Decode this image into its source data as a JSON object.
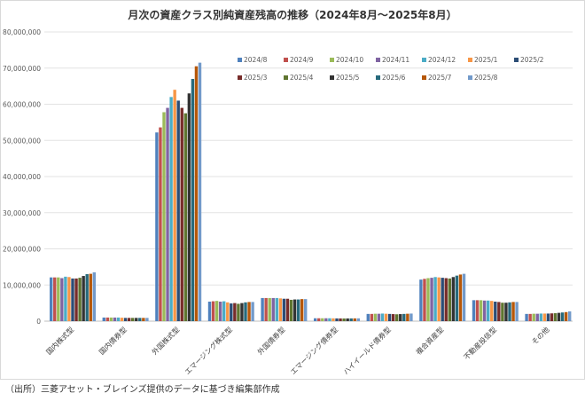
{
  "chart_data": {
    "type": "bar",
    "title": "月次の資産クラス別純資産残高の推移（2024年8月〜2025年8月）",
    "xlabel": "",
    "ylabel": "",
    "ylim": [
      0,
      80000000
    ],
    "yticks": [
      "0",
      "10,000,000",
      "20,000,000",
      "30,000,000",
      "40,000,000",
      "50,000,000",
      "60,000,000",
      "70,000,000",
      "80,000,000"
    ],
    "grid": true,
    "legend_position": "top-right",
    "categories": [
      "国内株式型",
      "国内債券型",
      "外国株式型",
      "エマージング株式型",
      "外国債券型",
      "エマージング債券型",
      "ハイイールド債券型",
      "複合資産型",
      "不動産投信型",
      "その他"
    ],
    "series": [
      {
        "name": "2024/8",
        "color": "#4f81bd",
        "values": [
          12100000,
          1000000,
          52200000,
          5400000,
          6400000,
          800000,
          2000000,
          11500000,
          5800000,
          2000000
        ]
      },
      {
        "name": "2024/9",
        "color": "#c0504d",
        "values": [
          12100000,
          1000000,
          53600000,
          5500000,
          6400000,
          800000,
          2000000,
          11700000,
          5800000,
          2000000
        ]
      },
      {
        "name": "2024/10",
        "color": "#9bbb59",
        "values": [
          12100000,
          1000000,
          57800000,
          5600000,
          6400000,
          800000,
          2050000,
          11900000,
          5800000,
          2050000
        ]
      },
      {
        "name": "2024/11",
        "color": "#8064a2",
        "values": [
          11900000,
          1000000,
          59000000,
          5400000,
          6400000,
          800000,
          2050000,
          12000000,
          5700000,
          2050000
        ]
      },
      {
        "name": "2024/12",
        "color": "#4bacc6",
        "values": [
          12300000,
          1000000,
          62000000,
          5500000,
          6400000,
          800000,
          2100000,
          12200000,
          5700000,
          2100000
        ]
      },
      {
        "name": "2025/1",
        "color": "#f79646",
        "values": [
          12200000,
          950000,
          64000000,
          5200000,
          6300000,
          780000,
          2050000,
          12100000,
          5600000,
          2100000
        ]
      },
      {
        "name": "2025/2",
        "color": "#2c4d75",
        "values": [
          11800000,
          900000,
          61000000,
          4900000,
          6200000,
          760000,
          2000000,
          12000000,
          5400000,
          2100000
        ]
      },
      {
        "name": "2025/3",
        "color": "#772c2a",
        "values": [
          11800000,
          900000,
          59000000,
          5000000,
          6200000,
          750000,
          1950000,
          11900000,
          5300000,
          2150000
        ]
      },
      {
        "name": "2025/4",
        "color": "#5f7530",
        "values": [
          12000000,
          900000,
          57500000,
          4800000,
          5900000,
          740000,
          1900000,
          11800000,
          5100000,
          2200000
        ]
      },
      {
        "name": "2025/5",
        "color": "#333333",
        "values": [
          12500000,
          900000,
          63000000,
          5000000,
          6000000,
          750000,
          1950000,
          12200000,
          5100000,
          2300000
        ]
      },
      {
        "name": "2025/6",
        "color": "#276a7c",
        "values": [
          13000000,
          900000,
          67000000,
          5200000,
          6000000,
          760000,
          2000000,
          12600000,
          5200000,
          2400000
        ]
      },
      {
        "name": "2025/7",
        "color": "#b65708",
        "values": [
          13100000,
          900000,
          70500000,
          5300000,
          6100000,
          770000,
          2050000,
          12900000,
          5300000,
          2500000
        ]
      },
      {
        "name": "2025/8",
        "color": "#729aca",
        "values": [
          13500000,
          900000,
          71500000,
          5300000,
          6100000,
          780000,
          2100000,
          13100000,
          5300000,
          2700000
        ]
      }
    ]
  },
  "footer": "（出所）三菱アセット・ブレインズ提供のデータに基づき編集部作成"
}
